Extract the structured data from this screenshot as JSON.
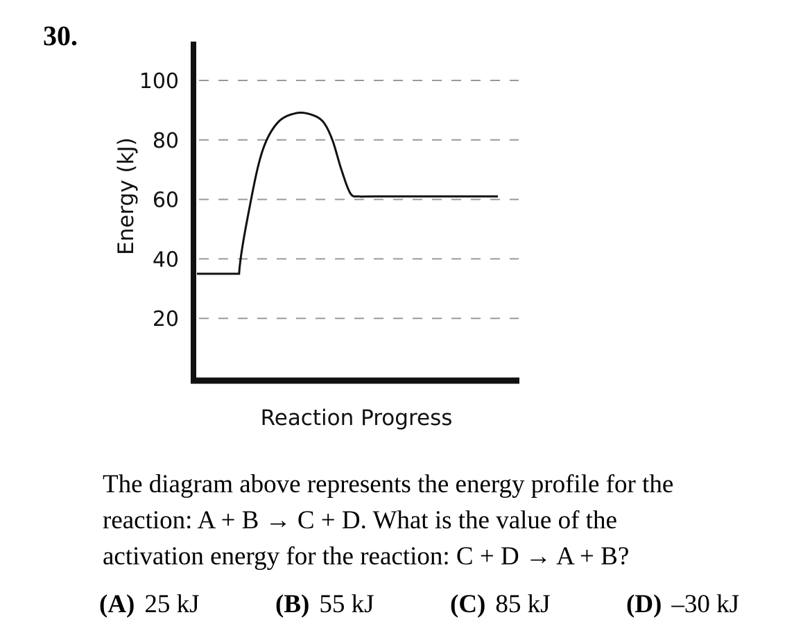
{
  "question": {
    "number": "30.",
    "text_lines": [
      "The diagram above represents the energy profile for the",
      "reaction: A + B → C + D. What is the value of the",
      "activation energy for the reaction: C + D → A + B?"
    ]
  },
  "choices": [
    {
      "letter": "(A)",
      "text": "25 kJ"
    },
    {
      "letter": "(B)",
      "text": "55 kJ"
    },
    {
      "letter": "(C)",
      "text": "85 kJ"
    },
    {
      "letter": "(D)",
      "text": "–30 kJ"
    }
  ],
  "chart_data": {
    "type": "line",
    "title": "",
    "xlabel": "Reaction Progress",
    "ylabel": "Energy (kJ)",
    "ylim": [
      0,
      110
    ],
    "yticks": [
      20,
      40,
      60,
      80,
      100
    ],
    "grid": "dashed horizontal",
    "series": [
      {
        "x": [
          0,
          0.14,
          0.18,
          0.22,
          0.27,
          0.33,
          0.38,
          0.42,
          0.45,
          0.48,
          0.51,
          0.54,
          0.6,
          1.0
        ],
        "values": [
          35,
          35,
          60,
          77,
          86,
          89,
          88.5,
          86,
          80,
          70,
          62,
          61,
          61,
          61
        ]
      }
    ]
  }
}
